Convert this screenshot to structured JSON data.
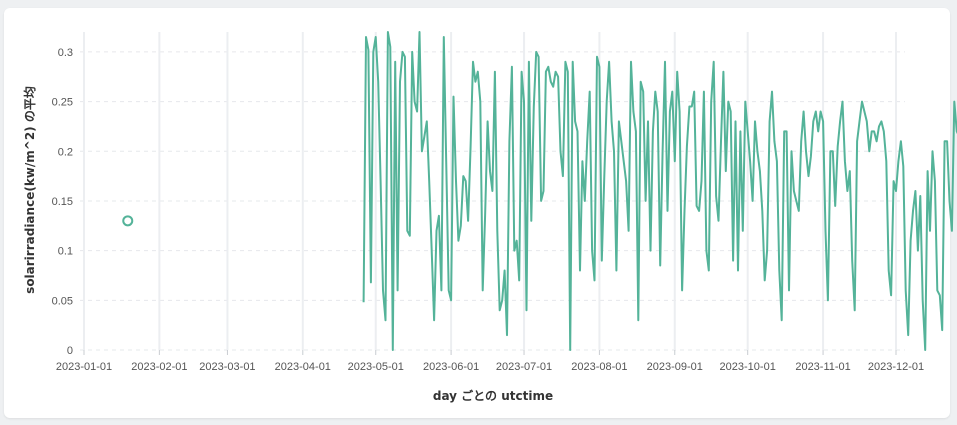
{
  "chart_data": {
    "type": "line",
    "xlabel": "day ごとの utctime",
    "ylabel": "solarirradiance(kw/m^2) の平均",
    "ylim": [
      0,
      0.32
    ],
    "x_ticks": [
      "2023-01-01",
      "2023-02-01",
      "2023-03-01",
      "2023-04-01",
      "2023-05-01",
      "2023-06-01",
      "2023-07-01",
      "2023-08-01",
      "2023-09-01",
      "2023-10-01",
      "2023-11-01",
      "2023-12-01"
    ],
    "y_ticks": [
      "0",
      "0.05",
      "0.1",
      "0.15",
      "0.2",
      "0.25",
      "0.3"
    ],
    "y_tick_values": [
      0,
      0.05,
      0.1,
      0.15,
      0.2,
      0.25,
      0.3
    ],
    "grid": true,
    "color": "#54b399",
    "isolated_points": [
      {
        "x": "2023-01-19",
        "y": 0.13
      }
    ],
    "series_start": "2023-04-26",
    "series_values": [
      0.048,
      0.315,
      0.302,
      0.068,
      0.3,
      0.315,
      0.27,
      0.17,
      0.06,
      0.03,
      0.32,
      0.305,
      0.0,
      0.29,
      0.06,
      0.27,
      0.3,
      0.295,
      0.12,
      0.115,
      0.3,
      0.25,
      0.24,
      0.32,
      0.2,
      0.215,
      0.23,
      0.17,
      0.1,
      0.03,
      0.12,
      0.135,
      0.06,
      0.315,
      0.19,
      0.06,
      0.05,
      0.255,
      0.17,
      0.11,
      0.125,
      0.175,
      0.17,
      0.13,
      0.205,
      0.29,
      0.27,
      0.28,
      0.25,
      0.06,
      0.135,
      0.23,
      0.18,
      0.16,
      0.28,
      0.12,
      0.04,
      0.05,
      0.08,
      0.015,
      0.21,
      0.285,
      0.1,
      0.11,
      0.07,
      0.28,
      0.25,
      0.04,
      0.29,
      0.13,
      0.245,
      0.3,
      0.295,
      0.15,
      0.16,
      0.28,
      0.285,
      0.27,
      0.265,
      0.28,
      0.275,
      0.2,
      0.175,
      0.29,
      0.28,
      0.0,
      0.29,
      0.23,
      0.22,
      0.08,
      0.19,
      0.15,
      0.21,
      0.26,
      0.1,
      0.07,
      0.295,
      0.285,
      0.09,
      0.175,
      0.25,
      0.29,
      0.23,
      0.2,
      0.08,
      0.23,
      0.21,
      0.19,
      0.17,
      0.12,
      0.29,
      0.24,
      0.22,
      0.03,
      0.27,
      0.26,
      0.15,
      0.23,
      0.1,
      0.22,
      0.26,
      0.24,
      0.085,
      0.2,
      0.29,
      0.14,
      0.24,
      0.26,
      0.19,
      0.28,
      0.24,
      0.06,
      0.14,
      0.205,
      0.245,
      0.245,
      0.26,
      0.145,
      0.14,
      0.17,
      0.26,
      0.1,
      0.08,
      0.25,
      0.29,
      0.155,
      0.13,
      0.21,
      0.28,
      0.18,
      0.25,
      0.24,
      0.09,
      0.23,
      0.08,
      0.22,
      0.12,
      0.25,
      0.22,
      0.19,
      0.15,
      0.23,
      0.2,
      0.18,
      0.14,
      0.07,
      0.1,
      0.23,
      0.26,
      0.21,
      0.19,
      0.08,
      0.03,
      0.22,
      0.22,
      0.06,
      0.2,
      0.16,
      0.15,
      0.14,
      0.21,
      0.24,
      0.2,
      0.175,
      0.195,
      0.23,
      0.24,
      0.22,
      0.24,
      0.23,
      0.12,
      0.05,
      0.2,
      0.2,
      0.145,
      0.205,
      0.23,
      0.25,
      0.19,
      0.16,
      0.18,
      0.09,
      0.04,
      0.21,
      0.23,
      0.25,
      0.24,
      0.23,
      0.2,
      0.22,
      0.22,
      0.21,
      0.225,
      0.23,
      0.22,
      0.19,
      0.08,
      0.055,
      0.17,
      0.16,
      0.19,
      0.21,
      0.185,
      0.06,
      0.015,
      0.11,
      0.14,
      0.16,
      0.1,
      0.155,
      0.05,
      0.0,
      0.18,
      0.12,
      0.2,
      0.17,
      0.06,
      0.055,
      0.02,
      0.21,
      0.21,
      0.15,
      0.12,
      0.25,
      0.22,
      0.215,
      0.2,
      0.195,
      0.19,
      0.17,
      0.16,
      0.155,
      0.11,
      0.09,
      0.095,
      0.11,
      0.16,
      0.19,
      0.21,
      0.2,
      0.18,
      0.15,
      0.21,
      0.18,
      0.09,
      0.14,
      0.12,
      0.08,
      0.1,
      0.17,
      0.11,
      0.28
    ]
  }
}
